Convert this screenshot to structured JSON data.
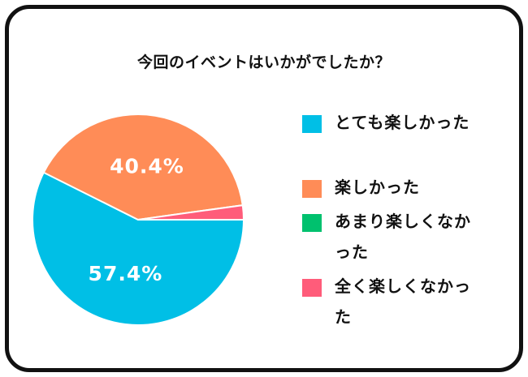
{
  "chart_data": {
    "type": "pie",
    "title": "今回のイベントはいかがでしたか？",
    "slices": [
      {
        "label": "とても楽しかった",
        "value": 57.4,
        "color": "#00bfe6",
        "data_label": "57.4%"
      },
      {
        "label": "楽しかった",
        "value": 40.4,
        "color": "#ff8c57",
        "data_label": "40.4%"
      },
      {
        "label": "あまり楽しくなかった",
        "value": 0,
        "color": "#00c16e",
        "data_label": ""
      },
      {
        "label": "全く楽しくなかった",
        "value": 2.2,
        "color": "#ff5c7a",
        "data_label": ""
      }
    ],
    "legend_position": "right"
  }
}
